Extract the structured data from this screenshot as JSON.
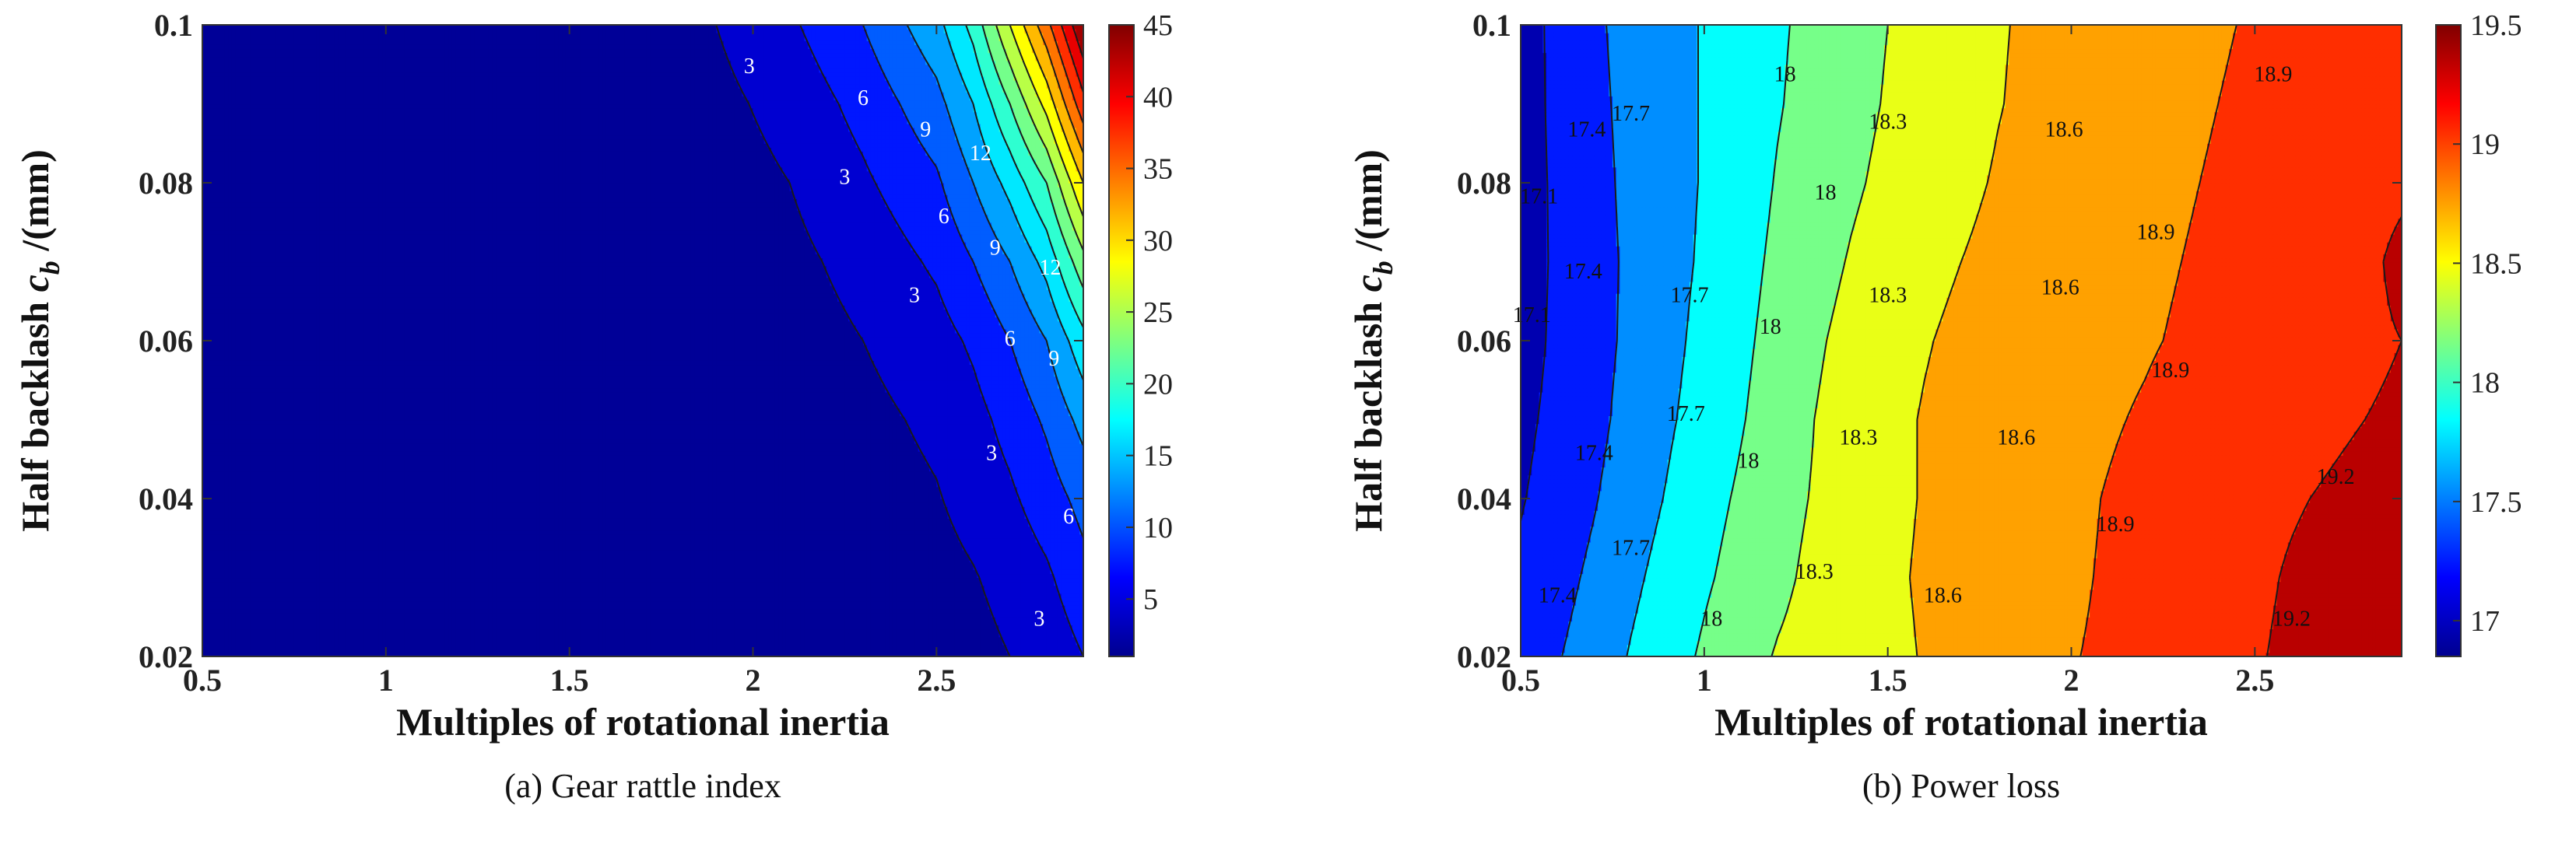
{
  "chart_data": [
    {
      "type": "heatmap",
      "subtype": "filled-contour",
      "caption": "(a) Gear rattle index",
      "xlabel": "Multiples of rotational inertia",
      "ylabel": "Half backlash c_b /(mm)",
      "ylabel_parts": {
        "pre": "Half backlash ",
        "var": "c",
        "sub": "b",
        "post": " /(mm)"
      },
      "xlim": [
        0.5,
        2.9
      ],
      "ylim": [
        0.02,
        0.1
      ],
      "xticks": [
        "0.5",
        "1",
        "1.5",
        "2",
        "2.5"
      ],
      "yticks": [
        "0.02",
        "0.04",
        "0.06",
        "0.08",
        "0.1"
      ],
      "colorbar": {
        "min": 1,
        "max": 45,
        "ticks": [
          "5",
          "10",
          "15",
          "20",
          "25",
          "30",
          "35",
          "40",
          "45"
        ]
      },
      "x": [
        0.5,
        0.7,
        0.9,
        1.1,
        1.3,
        1.5,
        1.7,
        1.9,
        2.1,
        2.3,
        2.5,
        2.6,
        2.7,
        2.8,
        2.9
      ],
      "y": [
        0.02,
        0.03,
        0.04,
        0.05,
        0.06,
        0.07,
        0.08,
        0.09,
        0.1
      ],
      "z": [
        [
          1,
          1,
          1,
          1,
          1,
          1,
          1,
          1,
          1,
          1,
          1.5,
          2,
          3,
          4,
          6
        ],
        [
          1,
          1,
          1,
          1,
          1,
          1,
          1,
          1,
          1,
          1.2,
          2,
          2.8,
          4,
          5.5,
          8
        ],
        [
          1,
          1,
          1,
          1,
          1,
          1,
          1,
          1,
          1,
          1.6,
          2.8,
          4,
          5.5,
          7.5,
          10
        ],
        [
          1,
          1,
          1,
          1,
          1,
          1,
          1,
          1,
          1.2,
          2.2,
          3.6,
          5,
          7,
          9.5,
          13
        ],
        [
          1,
          1,
          1,
          1,
          1,
          1,
          1,
          1,
          1.6,
          3,
          4.8,
          6.5,
          9,
          12,
          17
        ],
        [
          1,
          1,
          1,
          1,
          1,
          1,
          1,
          1.2,
          2.2,
          4,
          6.5,
          9,
          12,
          16,
          23
        ],
        [
          1,
          1,
          1,
          1,
          1,
          1,
          1,
          1.6,
          3,
          5.5,
          8.5,
          12,
          16,
          21,
          30
        ],
        [
          1,
          1,
          1,
          1,
          1,
          1,
          1.2,
          2.2,
          4,
          7,
          11,
          15,
          21,
          28,
          38
        ],
        [
          1,
          1,
          1,
          1,
          1,
          1,
          1.6,
          3,
          5.5,
          9,
          14,
          19,
          27,
          35,
          45
        ]
      ],
      "levels": [
        3,
        6,
        9,
        12,
        15,
        18,
        21,
        24,
        27,
        30,
        33,
        36,
        39,
        42
      ],
      "contour_labels": [
        {
          "x": 1.99,
          "y": 0.0945,
          "text": "3"
        },
        {
          "x": 2.25,
          "y": 0.0805,
          "text": "3"
        },
        {
          "x": 2.44,
          "y": 0.0655,
          "text": "3"
        },
        {
          "x": 2.65,
          "y": 0.0455,
          "text": "3"
        },
        {
          "x": 2.78,
          "y": 0.0245,
          "text": "3"
        },
        {
          "x": 2.3,
          "y": 0.0905,
          "text": "6"
        },
        {
          "x": 2.52,
          "y": 0.0755,
          "text": "6"
        },
        {
          "x": 2.7,
          "y": 0.06,
          "text": "6"
        },
        {
          "x": 2.86,
          "y": 0.0375,
          "text": "6"
        },
        {
          "x": 2.47,
          "y": 0.0865,
          "text": "9"
        },
        {
          "x": 2.66,
          "y": 0.0715,
          "text": "9"
        },
        {
          "x": 2.82,
          "y": 0.0575,
          "text": "9"
        },
        {
          "x": 2.62,
          "y": 0.0835,
          "text": "12"
        },
        {
          "x": 2.81,
          "y": 0.069,
          "text": "12"
        }
      ]
    },
    {
      "type": "heatmap",
      "subtype": "filled-contour",
      "caption": "(b) Power loss",
      "xlabel": "Multiples of rotational inertia",
      "ylabel": "Half backlash c_b /(mm)",
      "ylabel_parts": {
        "pre": "Half backlash ",
        "var": "c",
        "sub": "b",
        "post": " /(mm)"
      },
      "xlim": [
        0.5,
        2.9
      ],
      "ylim": [
        0.02,
        0.1
      ],
      "xticks": [
        "0.5",
        "1",
        "1.5",
        "2",
        "2.5"
      ],
      "yticks": [
        "0.02",
        "0.04",
        "0.06",
        "0.08",
        "0.1"
      ],
      "colorbar": {
        "min": 16.85,
        "max": 19.5,
        "ticks": [
          "17",
          "17.5",
          "18",
          "18.5",
          "19",
          "19.5"
        ]
      },
      "x": [
        0.5,
        0.6,
        0.7,
        0.8,
        0.9,
        1.0,
        1.1,
        1.2,
        1.3,
        1.4,
        1.5,
        1.6,
        1.7,
        1.8,
        1.9,
        2.0,
        2.1,
        2.2,
        2.3,
        2.4,
        2.5,
        2.6,
        2.7,
        2.8,
        2.9
      ],
      "y": [
        0.02,
        0.03,
        0.04,
        0.05,
        0.06,
        0.07,
        0.08,
        0.09,
        0.1
      ],
      "z": [
        [
          17.22,
          17.38,
          17.54,
          17.72,
          17.88,
          18.04,
          18.2,
          18.32,
          18.4,
          18.46,
          18.52,
          18.62,
          18.72,
          18.8,
          18.85,
          18.89,
          18.93,
          18.98,
          19.05,
          19.12,
          19.18,
          19.24,
          19.31,
          19.38,
          19.4
        ],
        [
          17.15,
          17.3,
          17.46,
          17.64,
          17.8,
          17.96,
          18.1,
          18.24,
          18.36,
          18.44,
          18.54,
          18.64,
          18.72,
          18.79,
          18.83,
          18.87,
          18.92,
          18.97,
          19.04,
          19.1,
          19.16,
          19.22,
          19.27,
          19.32,
          19.35
        ],
        [
          17.08,
          17.22,
          17.38,
          17.56,
          17.72,
          17.9,
          18.04,
          18.2,
          18.32,
          18.42,
          18.52,
          18.62,
          18.7,
          18.76,
          18.81,
          18.86,
          18.91,
          18.96,
          19.02,
          19.08,
          19.14,
          19.18,
          19.22,
          19.26,
          19.3
        ],
        [
          17.03,
          17.18,
          17.32,
          17.5,
          17.66,
          17.82,
          17.98,
          18.14,
          18.3,
          18.42,
          18.52,
          18.62,
          18.7,
          18.76,
          18.8,
          18.84,
          18.88,
          18.92,
          18.97,
          19.03,
          19.08,
          19.12,
          19.16,
          19.2,
          19.25
        ],
        [
          16.97,
          17.16,
          17.3,
          17.46,
          17.62,
          17.78,
          17.94,
          18.1,
          18.26,
          18.38,
          18.48,
          18.58,
          18.66,
          18.72,
          18.77,
          18.81,
          18.85,
          18.88,
          18.92,
          18.96,
          19.0,
          19.04,
          19.08,
          19.14,
          19.2
        ],
        [
          16.95,
          17.15,
          17.3,
          17.45,
          17.6,
          17.74,
          17.9,
          18.06,
          18.2,
          18.32,
          18.42,
          18.52,
          18.6,
          18.66,
          18.72,
          18.77,
          18.82,
          18.86,
          18.9,
          18.94,
          18.98,
          19.02,
          19.06,
          19.12,
          19.28
        ],
        [
          16.94,
          17.16,
          17.32,
          17.46,
          17.6,
          17.72,
          17.86,
          18.02,
          18.14,
          18.26,
          18.36,
          18.46,
          18.55,
          18.62,
          18.68,
          18.74,
          18.79,
          18.84,
          18.88,
          18.92,
          18.96,
          19.0,
          19.04,
          19.08,
          19.14
        ],
        [
          16.94,
          17.18,
          17.34,
          17.47,
          17.6,
          17.72,
          17.85,
          17.98,
          18.1,
          18.22,
          18.32,
          18.42,
          18.51,
          18.59,
          18.65,
          18.72,
          18.78,
          18.82,
          18.86,
          18.9,
          18.94,
          18.98,
          19.02,
          19.06,
          19.1
        ],
        [
          16.92,
          17.2,
          17.36,
          17.48,
          17.6,
          17.72,
          17.84,
          17.96,
          18.08,
          18.2,
          18.3,
          18.4,
          18.5,
          18.58,
          18.64,
          18.7,
          18.76,
          18.8,
          18.84,
          18.88,
          18.92,
          18.96,
          19.0,
          19.04,
          19.08
        ]
      ],
      "levels": [
        17.1,
        17.4,
        17.7,
        18.0,
        18.3,
        18.6,
        18.9,
        19.2
      ],
      "contour_labels": [
        {
          "x": 0.55,
          "y": 0.078,
          "text": "17.1"
        },
        {
          "x": 0.53,
          "y": 0.063,
          "text": "17.1"
        },
        {
          "x": 0.68,
          "y": 0.0865,
          "text": "17.4"
        },
        {
          "x": 0.67,
          "y": 0.0685,
          "text": "17.4"
        },
        {
          "x": 0.7,
          "y": 0.0455,
          "text": "17.4"
        },
        {
          "x": 0.6,
          "y": 0.0275,
          "text": "17.4"
        },
        {
          "x": 0.8,
          "y": 0.0885,
          "text": "17.7"
        },
        {
          "x": 0.96,
          "y": 0.0655,
          "text": "17.7"
        },
        {
          "x": 0.95,
          "y": 0.0505,
          "text": "17.7"
        },
        {
          "x": 0.8,
          "y": 0.0335,
          "text": "17.7"
        },
        {
          "x": 1.22,
          "y": 0.0935,
          "text": "18"
        },
        {
          "x": 1.33,
          "y": 0.0785,
          "text": "18"
        },
        {
          "x": 1.18,
          "y": 0.0615,
          "text": "18"
        },
        {
          "x": 1.12,
          "y": 0.0445,
          "text": "18"
        },
        {
          "x": 1.02,
          "y": 0.0245,
          "text": "18"
        },
        {
          "x": 1.5,
          "y": 0.0875,
          "text": "18.3"
        },
        {
          "x": 1.5,
          "y": 0.0655,
          "text": "18.3"
        },
        {
          "x": 1.42,
          "y": 0.0475,
          "text": "18.3"
        },
        {
          "x": 1.3,
          "y": 0.0305,
          "text": "18.3"
        },
        {
          "x": 1.98,
          "y": 0.0865,
          "text": "18.6"
        },
        {
          "x": 1.97,
          "y": 0.0665,
          "text": "18.6"
        },
        {
          "x": 1.85,
          "y": 0.0475,
          "text": "18.6"
        },
        {
          "x": 1.65,
          "y": 0.0275,
          "text": "18.6"
        },
        {
          "x": 2.55,
          "y": 0.0935,
          "text": "18.9"
        },
        {
          "x": 2.23,
          "y": 0.0735,
          "text": "18.9"
        },
        {
          "x": 2.27,
          "y": 0.056,
          "text": "18.9"
        },
        {
          "x": 2.12,
          "y": 0.0365,
          "text": "18.9"
        },
        {
          "x": 2.72,
          "y": 0.0425,
          "text": "19.2"
        },
        {
          "x": 2.6,
          "y": 0.0245,
          "text": "19.2"
        }
      ]
    }
  ]
}
